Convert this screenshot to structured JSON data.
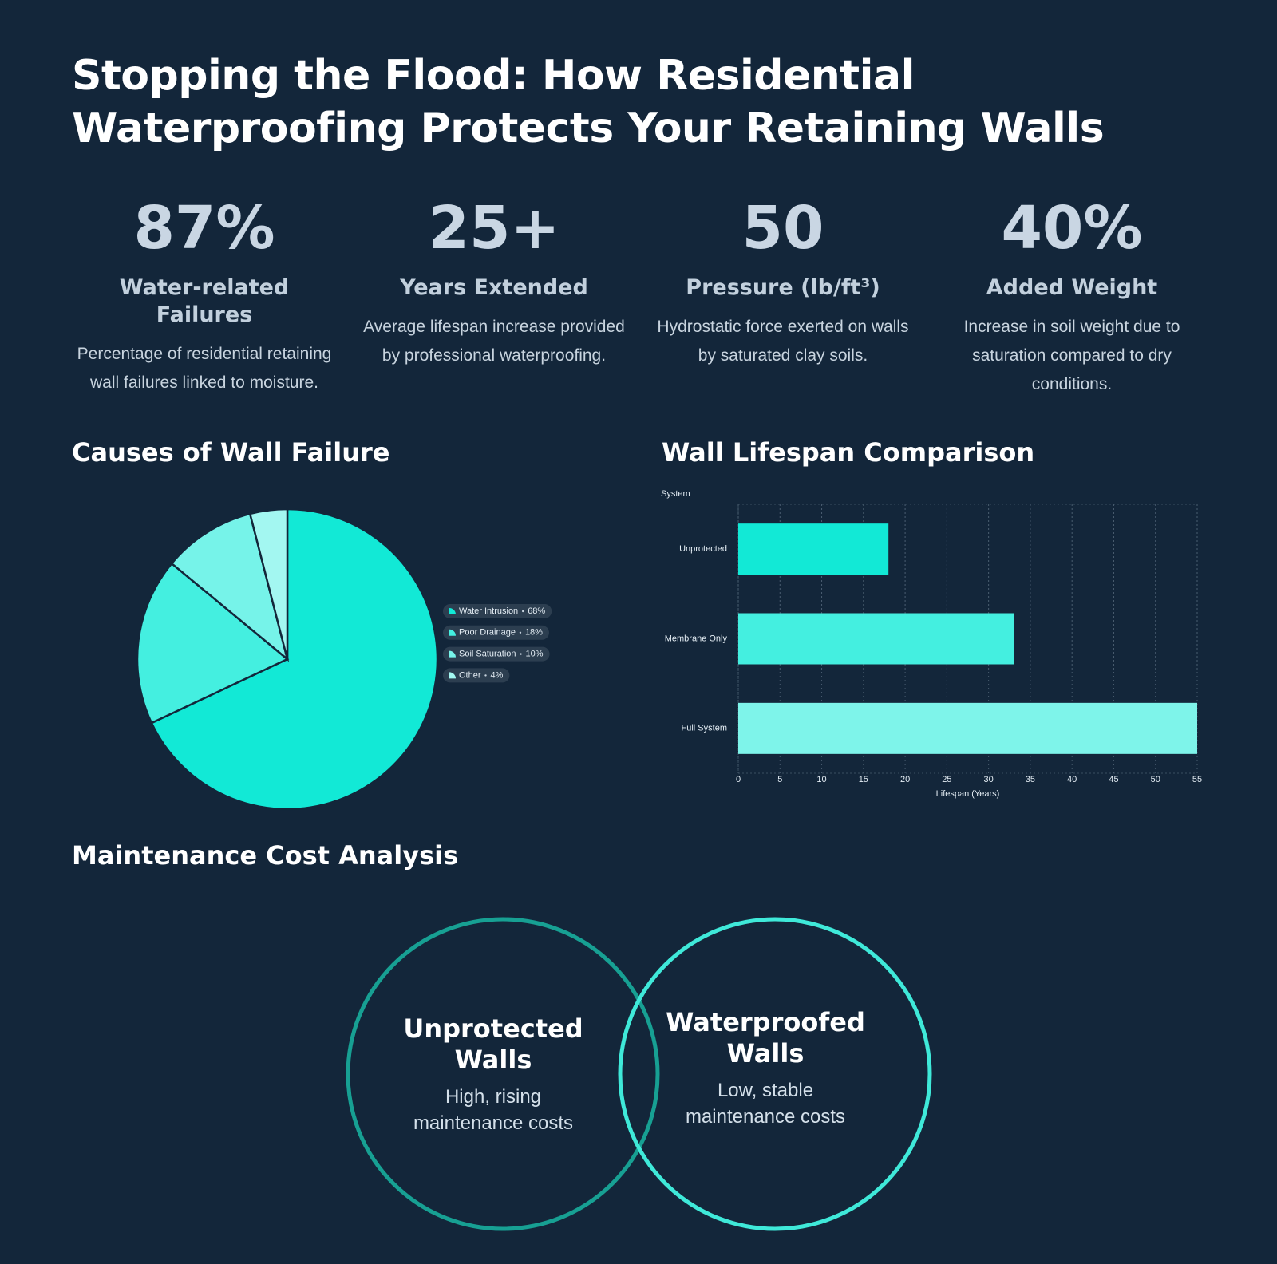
{
  "title": "Stopping the Flood: How Residential Waterproofing Protects Your Retaining Walls",
  "stats": [
    {
      "value": "87%",
      "label": "Water-related Failures",
      "description": "Percentage of residential retaining wall failures linked to moisture."
    },
    {
      "value": "25+",
      "label": "Years Extended",
      "description": "Average lifespan increase provided by professional waterproofing."
    },
    {
      "value": "50",
      "label": "Pressure (lb/ft³)",
      "description": "Hydrostatic force exerted on walls by saturated clay soils."
    },
    {
      "value": "40%",
      "label": "Added Weight",
      "description": "Increase in soil weight due to saturation compared to dry conditions."
    }
  ],
  "chart_data": [
    {
      "type": "pie",
      "title": "Causes of Wall Failure",
      "categories": [
        "Water Intrusion",
        "Poor Drainage",
        "Soil Saturation",
        "Other"
      ],
      "values": [
        68,
        18,
        10,
        4
      ],
      "value_labels": [
        "68%",
        "18%",
        "10%",
        "4%"
      ],
      "colors": [
        "#12e9d6",
        "#44efe0",
        "#76f3e9",
        "#a3f7f1"
      ]
    },
    {
      "type": "hbar",
      "title": "Wall Lifespan Comparison",
      "y_label": "System",
      "x_label": "Lifespan (Years)",
      "categories": [
        "Unprotected",
        "Membrane Only",
        "Full System"
      ],
      "values": [
        18,
        33,
        55
      ],
      "colors": [
        "#12e9d6",
        "#44efe0",
        "#7ef4ea"
      ],
      "xlim": [
        0,
        55
      ],
      "xticks": [
        0,
        5,
        10,
        15,
        20,
        25,
        30,
        35,
        40,
        45,
        50,
        55
      ],
      "grid": true
    }
  ],
  "maintenance": {
    "title": "Maintenance Cost Analysis",
    "circles": [
      {
        "label": "Unprotected Walls",
        "description": "High, rising maintenance costs",
        "color": "#17a093"
      },
      {
        "label": "Waterproofed Walls",
        "description": "Low, stable maintenance costs",
        "color": "#3fe9d9"
      }
    ]
  }
}
